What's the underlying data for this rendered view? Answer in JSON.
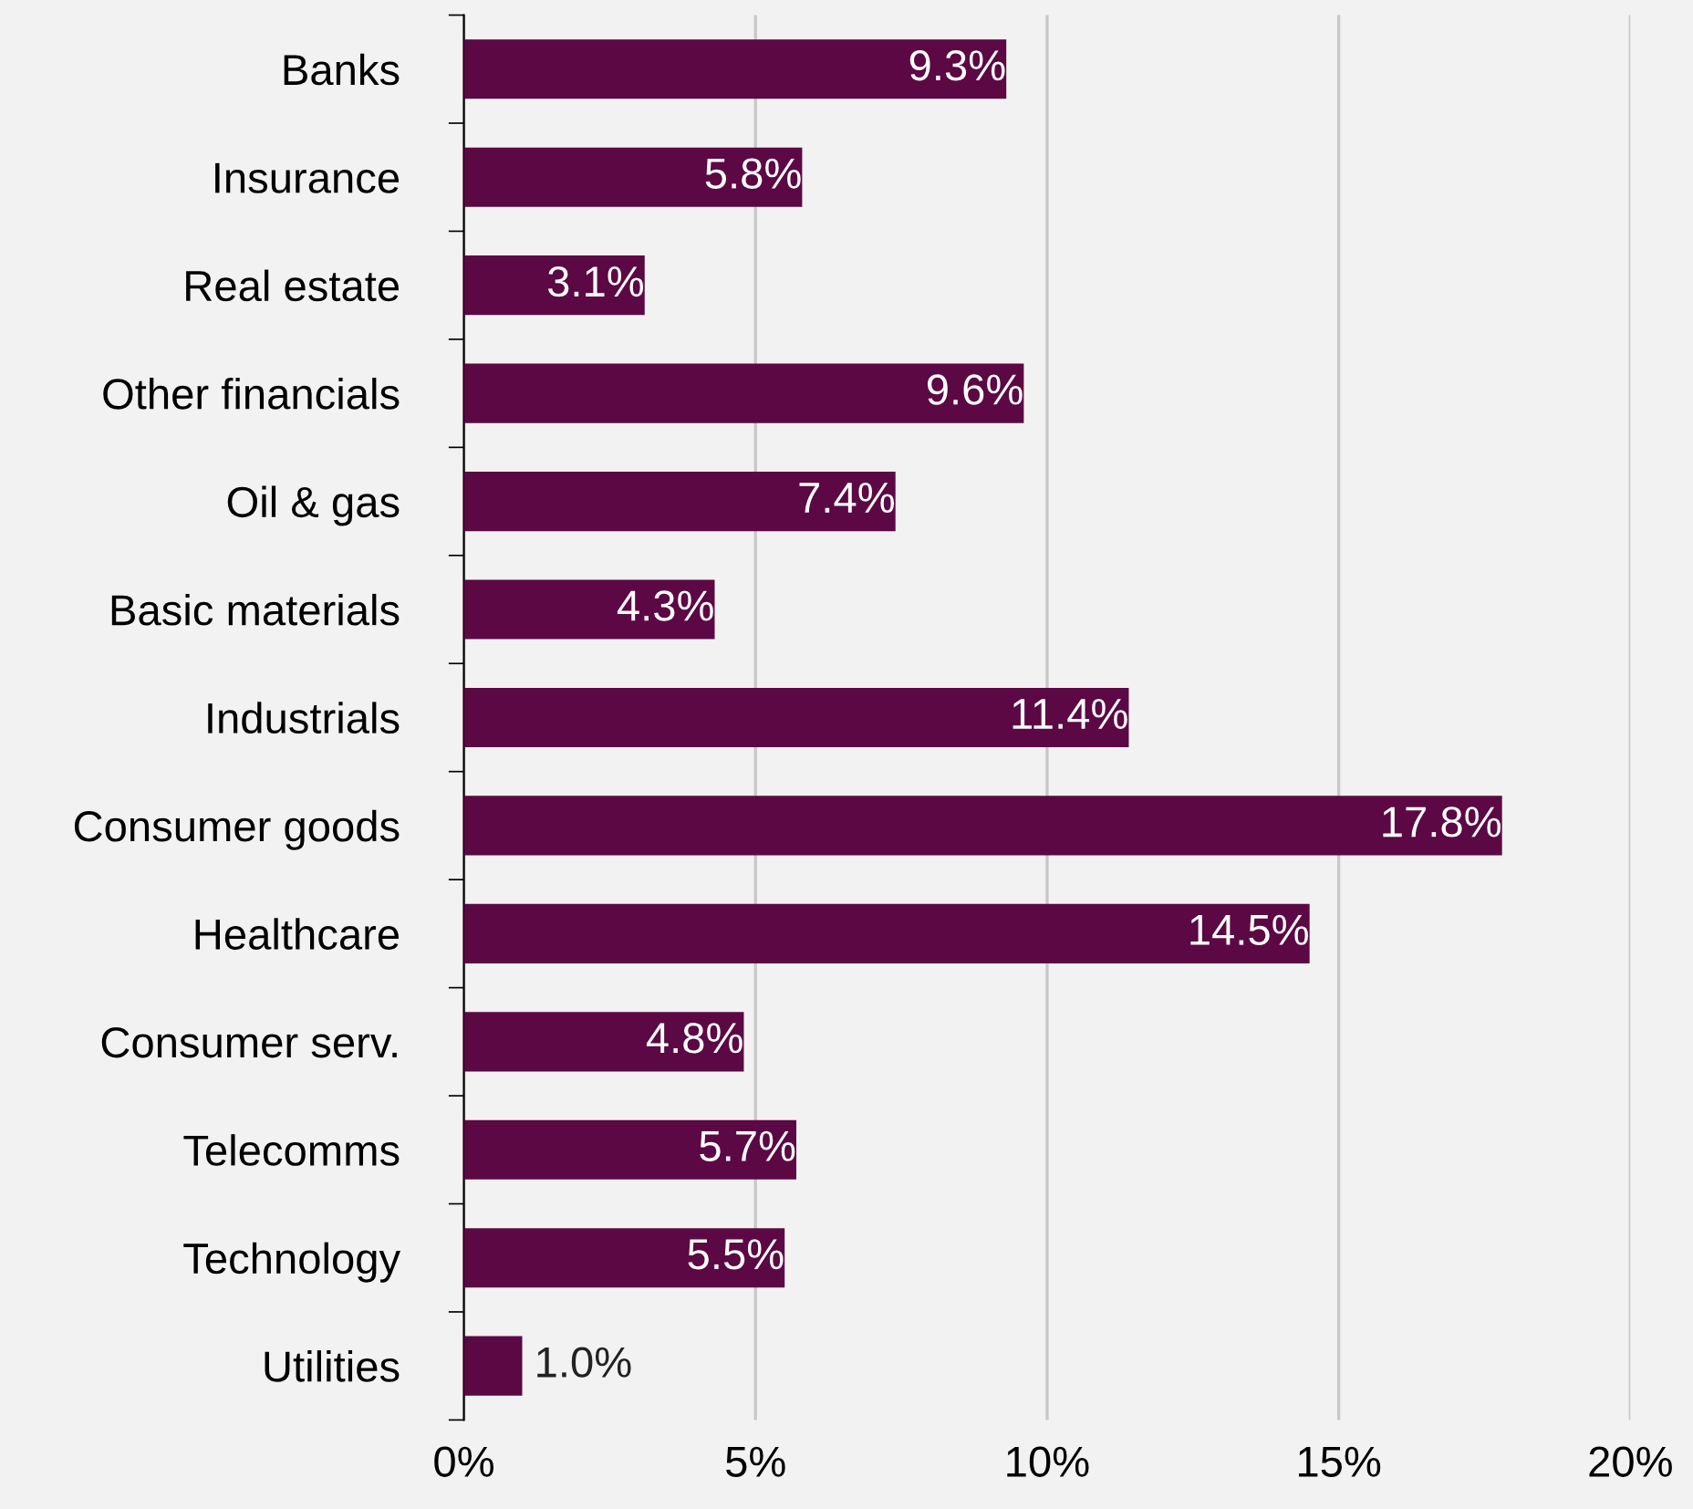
{
  "chart_data": {
    "type": "bar",
    "orientation": "horizontal",
    "categories": [
      "Banks",
      "Insurance",
      "Real estate",
      "Other financials",
      "Oil & gas",
      "Basic materials",
      "Industrials",
      "Consumer goods",
      "Healthcare",
      "Consumer serv.",
      "Telecomms",
      "Technology",
      "Utilities"
    ],
    "values": [
      9.3,
      5.8,
      3.1,
      9.6,
      7.4,
      4.3,
      11.4,
      17.8,
      14.5,
      4.8,
      5.7,
      5.5,
      1.0
    ],
    "value_labels": [
      "9.3%",
      "5.8%",
      "3.1%",
      "9.6%",
      "7.4%",
      "4.3%",
      "11.4%",
      "17.8%",
      "14.5%",
      "4.8%",
      "5.7%",
      "5.5%",
      "1.0%"
    ],
    "color": "#5c0845",
    "xlim": [
      0,
      20
    ],
    "xticks": [
      {
        "value": 0,
        "label": "0%"
      },
      {
        "value": 5,
        "label": "5%"
      },
      {
        "value": 10,
        "label": "10%"
      },
      {
        "value": 15,
        "label": "15%"
      },
      {
        "value": 20,
        "label": "20%"
      }
    ],
    "grid": "x",
    "legend": false
  }
}
